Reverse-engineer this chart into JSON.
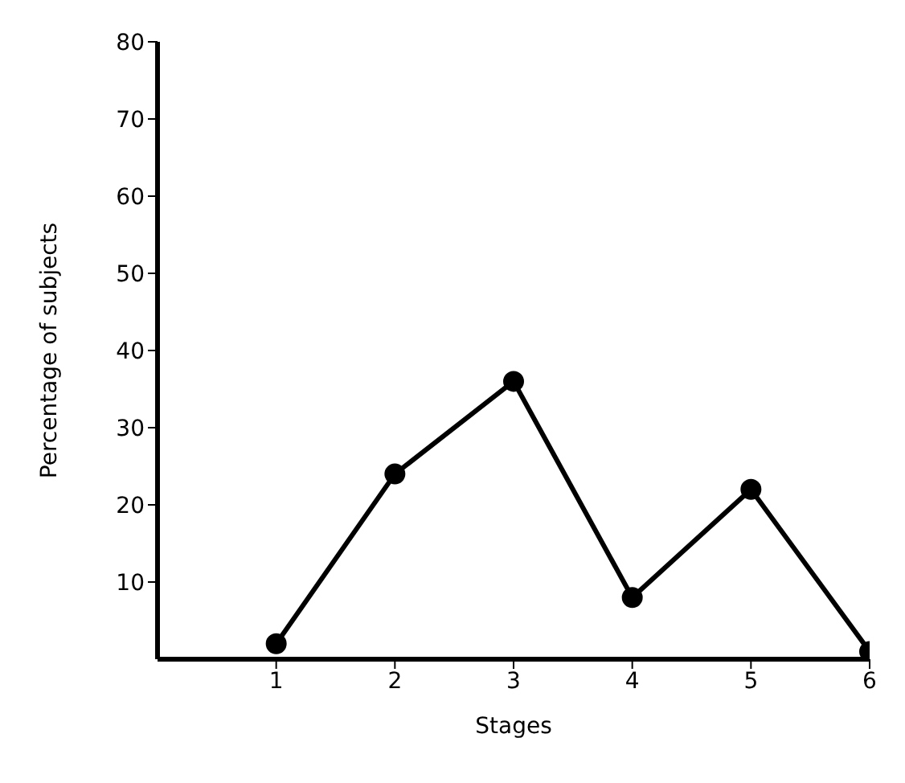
{
  "chart_data": {
    "type": "line",
    "xlabel": "Stages",
    "ylabel": "Percentage of subjects",
    "x": [
      1,
      2,
      3,
      4,
      5,
      6
    ],
    "series": [
      {
        "color": "#000000",
        "values": [
          2,
          24,
          36,
          8,
          22,
          1
        ]
      }
    ],
    "xlim": [
      0,
      6
    ],
    "xticks": [
      1,
      2,
      3,
      4,
      5,
      6
    ],
    "ylim": [
      0,
      80
    ],
    "yticks": [
      10,
      20,
      30,
      40,
      50,
      60,
      70,
      80
    ],
    "marker": "circle",
    "line_style": "solid",
    "grid": false,
    "legend": false
  }
}
